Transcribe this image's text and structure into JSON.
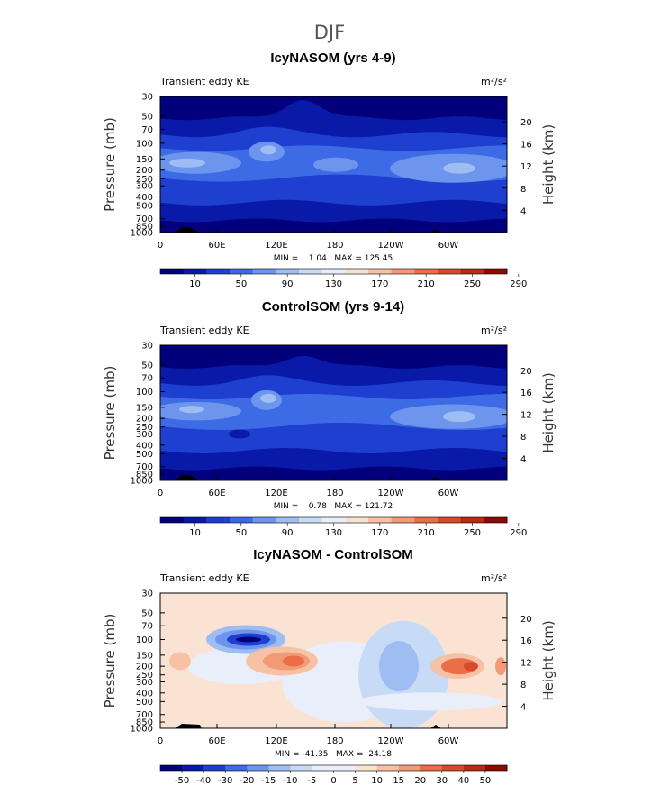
{
  "suptitle": "DJF",
  "chart_data": [
    {
      "type": "heatmap",
      "title": "IcyNASOM (yrs 4-9)",
      "left_label": "Transient eddy KE",
      "units": "m²/s²",
      "xlabel": "",
      "ylabel": "Pressure (mb)",
      "ylabel_right": "Height (km)",
      "x_ticks": [
        "0",
        "60E",
        "120E",
        "180",
        "120W",
        "60W"
      ],
      "y_ticks": [
        "30",
        "50",
        "70",
        "100",
        "150",
        "200",
        "250",
        "300",
        "400",
        "500",
        "700",
        "850",
        "1000"
      ],
      "height_ticks": [
        "20",
        "16",
        "12",
        "8",
        "4"
      ],
      "stats": "MIN =    1.04   MAX = 125.45",
      "colorbar_labels": [
        "10",
        "50",
        "90",
        "130",
        "170",
        "210",
        "250",
        "290"
      ],
      "colorbar_colors": [
        "#02007a",
        "#0a1aa8",
        "#1e3fd0",
        "#3d6be5",
        "#6d95ee",
        "#9dbdf3",
        "#c7dbf6",
        "#e9effa",
        "#fbe3d4",
        "#f7c1a6",
        "#f29a75",
        "#ea6f48",
        "#d84a2a",
        "#b92a14",
        "#8b0a05"
      ]
    },
    {
      "type": "heatmap",
      "title": "ControlSOM (yrs 9-14)",
      "left_label": "Transient eddy KE",
      "units": "m²/s²",
      "xlabel": "",
      "ylabel": "Pressure (mb)",
      "ylabel_right": "Height (km)",
      "x_ticks": [
        "0",
        "60E",
        "120E",
        "180",
        "120W",
        "60W"
      ],
      "y_ticks": [
        "30",
        "50",
        "70",
        "100",
        "150",
        "200",
        "250",
        "300",
        "400",
        "500",
        "700",
        "850",
        "1000"
      ],
      "height_ticks": [
        "20",
        "16",
        "12",
        "8",
        "4"
      ],
      "stats": "MIN =    0.78   MAX = 121.72",
      "colorbar_labels": [
        "10",
        "50",
        "90",
        "130",
        "170",
        "210",
        "250",
        "290"
      ],
      "colorbar_colors": [
        "#02007a",
        "#0a1aa8",
        "#1e3fd0",
        "#3d6be5",
        "#6d95ee",
        "#9dbdf3",
        "#c7dbf6",
        "#e9effa",
        "#fbe3d4",
        "#f7c1a6",
        "#f29a75",
        "#ea6f48",
        "#d84a2a",
        "#b92a14",
        "#8b0a05"
      ]
    },
    {
      "type": "heatmap",
      "title": "IcyNASOM - ControlSOM",
      "left_label": "Transient eddy KE",
      "units": "m²/s²",
      "xlabel": "",
      "ylabel": "Pressure (mb)",
      "ylabel_right": "Height (km)",
      "x_ticks": [
        "0",
        "60E",
        "120E",
        "180",
        "120W",
        "60W"
      ],
      "y_ticks": [
        "30",
        "50",
        "70",
        "100",
        "150",
        "200",
        "250",
        "300",
        "400",
        "500",
        "700",
        "850",
        "1000"
      ],
      "height_ticks": [
        "20",
        "16",
        "12",
        "8",
        "4"
      ],
      "stats": "MIN = -41.35   MAX =  24.18",
      "colorbar_labels": [
        "-50",
        "-40",
        "-30",
        "-20",
        "-15",
        "-10",
        "-5",
        "0",
        "5",
        "10",
        "15",
        "20",
        "30",
        "40",
        "50"
      ],
      "colorbar_colors": [
        "#02007a",
        "#0a1aa8",
        "#1e3fd0",
        "#3d6be5",
        "#6d95ee",
        "#9dbdf3",
        "#c7dbf6",
        "#e9effa",
        "#e9effa",
        "#fbe3d4",
        "#f7c1a6",
        "#f29a75",
        "#ea6f48",
        "#d84a2a",
        "#b92a14",
        "#8b0a05"
      ]
    }
  ]
}
